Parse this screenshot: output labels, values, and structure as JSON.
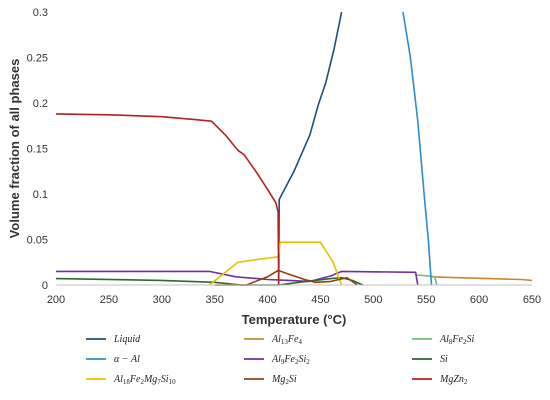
{
  "chart_data": {
    "type": "line",
    "title": "",
    "xlabel": "Temperature (°C)",
    "ylabel": "Volume fraction of all phases",
    "xlim": [
      200,
      650
    ],
    "ylim": [
      0,
      0.3
    ],
    "xticks": [
      "200",
      "250",
      "300",
      "350",
      "400",
      "450",
      "500",
      "550",
      "600",
      "650"
    ],
    "yticks": [
      "0",
      "0.05",
      "0.1",
      "0.15",
      "0.2",
      "0.25",
      "0.3"
    ],
    "grid": false,
    "legend_position": "bottom",
    "series": [
      {
        "name": "Liquid",
        "color": "#1f4e79",
        "points": [
          [
            410.5,
            0.0
          ],
          [
            411,
            0.094
          ],
          [
            425,
            0.125
          ],
          [
            440,
            0.165
          ],
          [
            448,
            0.198
          ],
          [
            455,
            0.222
          ],
          [
            463,
            0.26
          ],
          [
            470,
            0.3
          ]
        ]
      },
      {
        "name": "Al13Fe4",
        "color": "#c88a2c",
        "points": [
          [
            555,
            0.009
          ],
          [
            580,
            0.008
          ],
          [
            610,
            0.007
          ],
          [
            640,
            0.006
          ],
          [
            650,
            0.005
          ]
        ]
      },
      {
        "name": "Al8Fe2Si",
        "color": "#70c070",
        "points": [
          [
            540,
            0.011
          ],
          [
            552,
            0.01
          ],
          [
            558,
            0.009
          ],
          [
            560,
            0.0
          ]
        ]
      },
      {
        "name": "α − Al",
        "color": "#2e8ccf",
        "points": [
          [
            528,
            0.3
          ],
          [
            535,
            0.25
          ],
          [
            542,
            0.18
          ],
          [
            548,
            0.1
          ],
          [
            552,
            0.05
          ],
          [
            555,
            0.0
          ]
        ]
      },
      {
        "name": "Al9Fe2Si2",
        "color": "#7030a0",
        "points": [
          [
            200,
            0.015
          ],
          [
            345,
            0.015
          ],
          [
            370,
            0.009
          ],
          [
            400,
            0.006
          ],
          [
            420,
            0.005
          ],
          [
            440,
            0.004
          ],
          [
            460,
            0.01
          ],
          [
            470,
            0.015
          ],
          [
            540,
            0.014
          ],
          [
            542,
            0.0
          ]
        ]
      },
      {
        "name": "Si",
        "color": "#2d6a2d",
        "points": [
          [
            200,
            0.007
          ],
          [
            300,
            0.005
          ],
          [
            350,
            0.003
          ],
          [
            375,
            0.0
          ],
          [
            410,
            0.0
          ],
          [
            430,
            0.003
          ],
          [
            460,
            0.007
          ],
          [
            470,
            0.008
          ],
          [
            480,
            0.005
          ],
          [
            490,
            0.0
          ]
        ]
      },
      {
        "name": "Al18Fe2Mg7Si10",
        "color": "#e5c100",
        "points": [
          [
            345,
            0.0
          ],
          [
            358,
            0.012
          ],
          [
            372,
            0.025
          ],
          [
            390,
            0.028
          ],
          [
            410,
            0.031
          ],
          [
            412,
            0.047
          ],
          [
            450,
            0.047
          ],
          [
            462,
            0.025
          ],
          [
            470,
            0.0
          ]
        ]
      },
      {
        "name": "Mg2Si",
        "color": "#8b4513",
        "points": [
          [
            350,
            0.0
          ],
          [
            380,
            0.0
          ],
          [
            400,
            0.009
          ],
          [
            410,
            0.016
          ],
          [
            420,
            0.012
          ],
          [
            435,
            0.006
          ],
          [
            445,
            0.003
          ],
          [
            460,
            0.004
          ],
          [
            475,
            0.008
          ],
          [
            485,
            0.0
          ]
        ]
      },
      {
        "name": "MgZn2",
        "color": "#b22222",
        "points": [
          [
            200,
            0.188
          ],
          [
            250,
            0.187
          ],
          [
            300,
            0.185
          ],
          [
            330,
            0.182
          ],
          [
            347,
            0.18
          ],
          [
            360,
            0.165
          ],
          [
            372,
            0.148
          ],
          [
            378,
            0.143
          ],
          [
            390,
            0.123
          ],
          [
            400,
            0.105
          ],
          [
            408,
            0.09
          ],
          [
            410,
            0.08
          ],
          [
            410.5,
            0.0
          ]
        ]
      }
    ],
    "legend": [
      {
        "series": 0,
        "base": "Liquid",
        "sub": ""
      },
      {
        "series": 1,
        "base": "Al",
        "parts": [
          [
            "Al",
            ""
          ],
          [
            "13",
            ""
          ],
          [
            "Fe",
            ""
          ],
          [
            "4",
            ""
          ]
        ]
      },
      {
        "series": 2,
        "base": "Al8Fe2Si"
      },
      {
        "series": 3,
        "base": "α − Al"
      },
      {
        "series": 4,
        "base": "Al9Fe2Si2"
      },
      {
        "series": 5,
        "base": "Si"
      },
      {
        "series": 6,
        "base": "Al18Fe2Mg7Si10"
      },
      {
        "series": 7,
        "base": "Mg2Si"
      },
      {
        "series": 8,
        "base": "MgZn2"
      }
    ]
  }
}
